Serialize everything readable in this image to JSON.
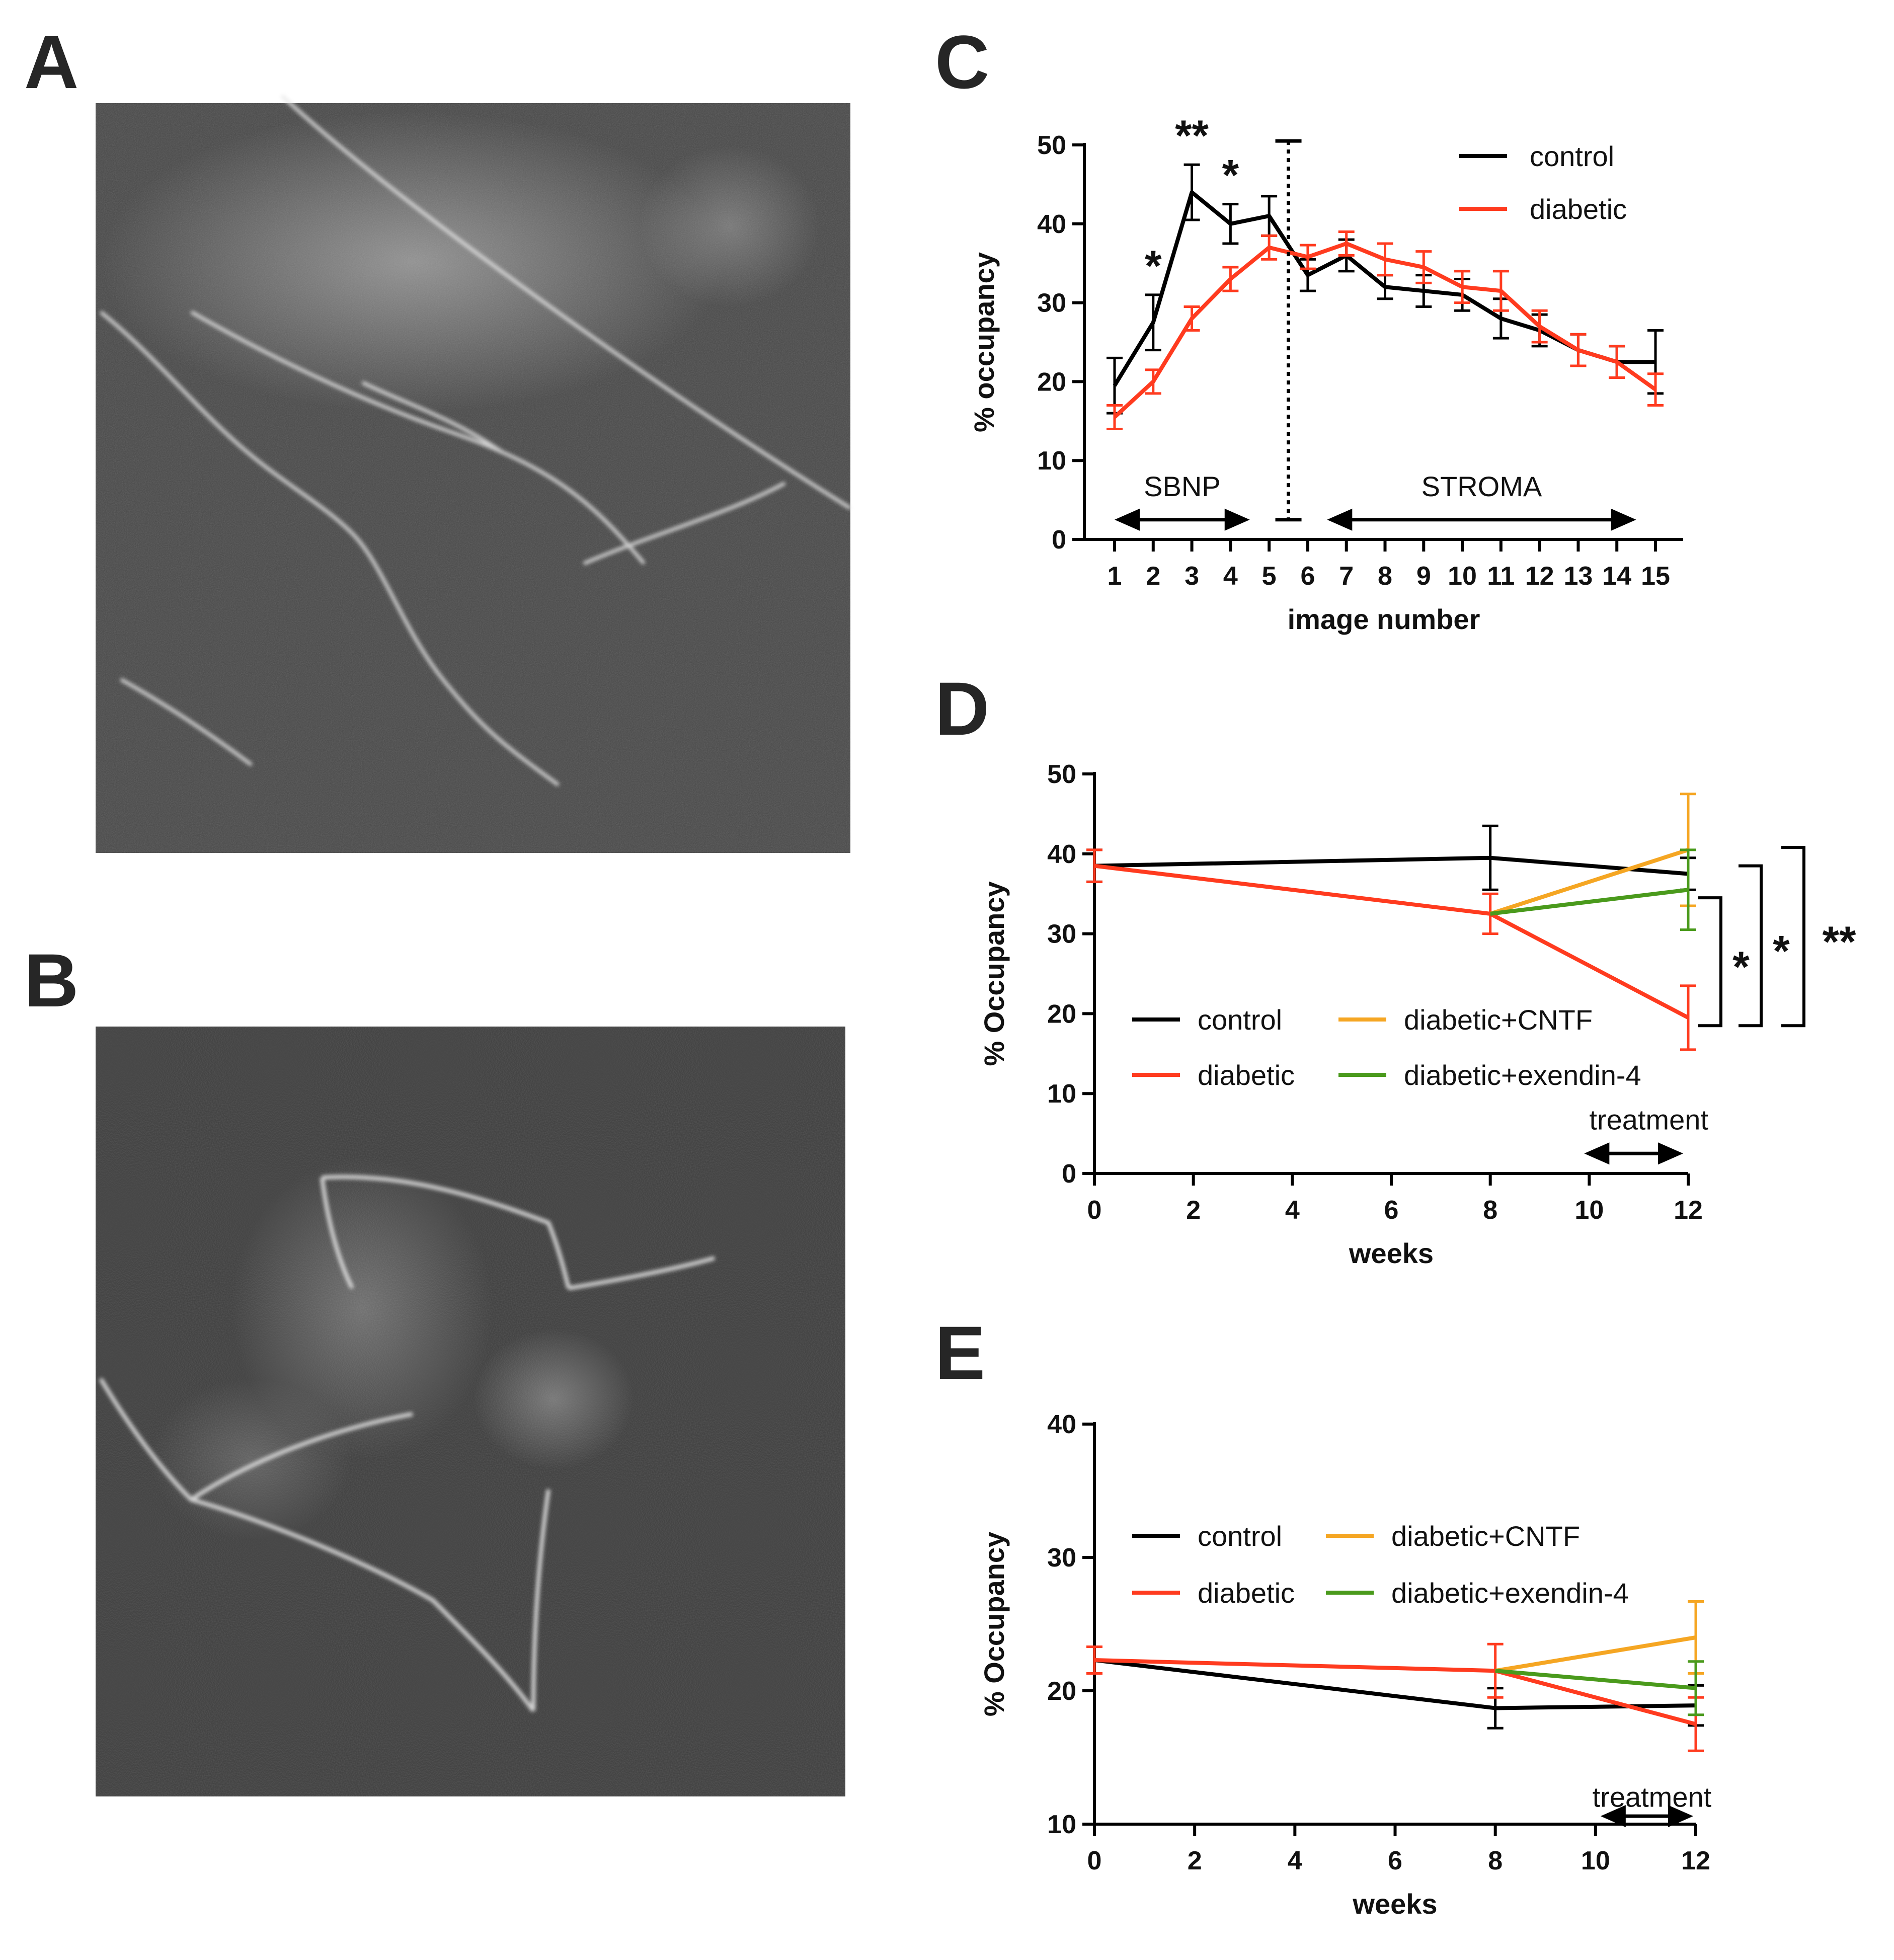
{
  "panels": {
    "A": {
      "letter": "A"
    },
    "B": {
      "letter": "B"
    },
    "C": {
      "letter": "C"
    },
    "D": {
      "letter": "D"
    },
    "E": {
      "letter": "E"
    }
  },
  "colors": {
    "control": "#000000",
    "diabetic": "#ff3b1f",
    "cntf": "#f5a623",
    "exendin": "#4a9a1c"
  },
  "images": [
    {
      "panel": "A",
      "description_icon": "confocal-nerve-image-a"
    },
    {
      "panel": "B",
      "description_icon": "confocal-nerve-image-b"
    }
  ],
  "chart_data": [
    {
      "panel": "C",
      "type": "line",
      "xlabel": "image number",
      "ylabel": "% occupancy",
      "xlim": [
        1,
        15
      ],
      "ylim": [
        0,
        50
      ],
      "xticks": [
        1,
        2,
        3,
        4,
        5,
        6,
        7,
        8,
        9,
        10,
        11,
        12,
        13,
        14,
        15
      ],
      "yticks": [
        0,
        10,
        20,
        30,
        40,
        50
      ],
      "legend_placement": "top-right",
      "series": [
        {
          "name": "control",
          "color": "#000000",
          "x": [
            1,
            2,
            3,
            4,
            5,
            6,
            7,
            8,
            9,
            10,
            11,
            12,
            13,
            14,
            15
          ],
          "values": [
            19.5,
            27.5,
            44,
            40,
            41,
            33.5,
            36,
            32,
            31.5,
            31,
            28,
            26.5,
            24,
            22.5,
            22.5
          ],
          "errors": [
            3.5,
            3.5,
            3.5,
            2.5,
            2.5,
            2,
            2,
            1.5,
            2,
            2,
            2.5,
            2,
            2,
            2,
            4
          ]
        },
        {
          "name": "diabetic",
          "color": "#ff3b1f",
          "x": [
            1,
            2,
            3,
            4,
            5,
            6,
            7,
            8,
            9,
            10,
            11,
            12,
            13,
            14,
            15
          ],
          "values": [
            15.5,
            20,
            28,
            33,
            37,
            35.8,
            37.5,
            35.5,
            34.5,
            32,
            31.5,
            27,
            24,
            22.5,
            19
          ],
          "errors": [
            1.5,
            1.5,
            1.5,
            1.5,
            1.5,
            1.5,
            1.5,
            2,
            2,
            2,
            2.5,
            2,
            2,
            2,
            2
          ]
        }
      ],
      "significance": [
        {
          "x": 2,
          "label": "*"
        },
        {
          "x": 3,
          "label": "**"
        },
        {
          "x": 4,
          "label": "*"
        }
      ],
      "divider_x": 5.5,
      "regions": [
        {
          "label": "SBNP",
          "from": 1,
          "to": 4.5
        },
        {
          "label": "STROMA",
          "from": 6.5,
          "to": 14.5
        }
      ]
    },
    {
      "panel": "D",
      "type": "line",
      "xlabel": "weeks",
      "ylabel": "% Occupancy",
      "xlim": [
        0,
        12
      ],
      "ylim": [
        0,
        50
      ],
      "xticks": [
        0,
        2,
        4,
        6,
        8,
        10,
        12
      ],
      "yticks": [
        0,
        10,
        20,
        30,
        40,
        50
      ],
      "legend_placement": "bottom-center",
      "series": [
        {
          "name": "control",
          "color": "#000000",
          "x": [
            0,
            8,
            12
          ],
          "values": [
            38.5,
            39.5,
            37.5
          ],
          "errors": [
            2,
            4,
            2
          ]
        },
        {
          "name": "diabetic",
          "color": "#ff3b1f",
          "x": [
            0,
            8,
            12
          ],
          "values": [
            38.5,
            32.5,
            19.5
          ],
          "errors": [
            2,
            2.5,
            4
          ]
        },
        {
          "name": "diabetic+CNTF",
          "color": "#f5a623",
          "x": [
            8,
            12
          ],
          "values": [
            32.5,
            40.5
          ],
          "errors": [
            0,
            7
          ]
        },
        {
          "name": "diabetic+exendin-4",
          "color": "#4a9a1c",
          "x": [
            8,
            12
          ],
          "values": [
            32.5,
            35.5
          ],
          "errors": [
            0,
            5
          ]
        }
      ],
      "treatment": {
        "label": "treatment",
        "from": 10,
        "to": 12
      },
      "significance": [
        {
          "label": "*",
          "between": [
            "diabetic",
            "control"
          ]
        },
        {
          "label": "*",
          "between": [
            "diabetic",
            "diabetic+exendin-4"
          ]
        },
        {
          "label": "**",
          "between": [
            "diabetic",
            "diabetic+CNTF"
          ]
        }
      ]
    },
    {
      "panel": "E",
      "type": "line",
      "xlabel": "weeks",
      "ylabel": "% Occupancy",
      "xlim": [
        0,
        12
      ],
      "ylim": [
        10,
        40
      ],
      "xticks": [
        0,
        2,
        4,
        6,
        8,
        10,
        12
      ],
      "yticks": [
        10,
        20,
        30,
        40
      ],
      "legend_placement": "top-center",
      "series": [
        {
          "name": "control",
          "color": "#000000",
          "x": [
            0,
            8,
            12
          ],
          "values": [
            22.3,
            18.7,
            18.9
          ],
          "errors": [
            1,
            1.5,
            1.5
          ]
        },
        {
          "name": "diabetic",
          "color": "#ff3b1f",
          "x": [
            0,
            8,
            12
          ],
          "values": [
            22.3,
            21.5,
            17.5
          ],
          "errors": [
            1,
            2,
            2
          ]
        },
        {
          "name": "diabetic+CNTF",
          "color": "#f5a623",
          "x": [
            8,
            12
          ],
          "values": [
            21.5,
            24
          ],
          "errors": [
            0,
            2.7
          ]
        },
        {
          "name": "diabetic+exendin-4",
          "color": "#4a9a1c",
          "x": [
            8,
            12
          ],
          "values": [
            21.5,
            20.2
          ],
          "errors": [
            0,
            2
          ]
        }
      ],
      "treatment": {
        "label": "treatment",
        "from": 10,
        "to": 12
      }
    }
  ]
}
